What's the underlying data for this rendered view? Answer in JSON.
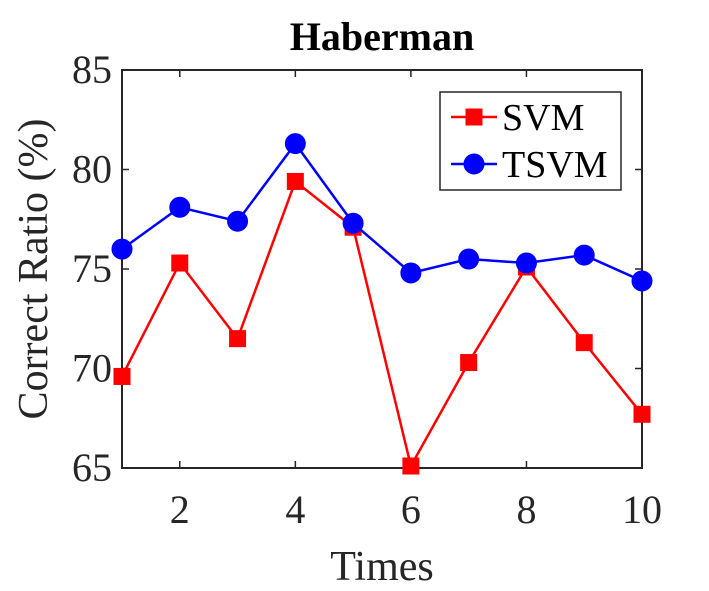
{
  "chart_data": {
    "type": "line",
    "title": "Haberman",
    "xlabel": "Times",
    "ylabel": "Correct Ratio (%)",
    "xlim": [
      1,
      10
    ],
    "ylim": [
      65,
      85
    ],
    "xticks": [
      2,
      4,
      6,
      8,
      10
    ],
    "yticks": [
      65,
      70,
      75,
      80,
      85
    ],
    "grid": false,
    "legend_position": "top-right",
    "x": [
      1,
      2,
      3,
      4,
      5,
      6,
      7,
      8,
      9,
      10
    ],
    "series": [
      {
        "name": "SVM",
        "color": "#ff0000",
        "marker": "square",
        "values": [
          69.6,
          75.3,
          71.5,
          79.4,
          77.1,
          65.1,
          70.3,
          75.1,
          71.3,
          67.7
        ]
      },
      {
        "name": "TSVM",
        "color": "#0000ff",
        "marker": "circle",
        "values": [
          76.0,
          78.1,
          77.4,
          81.3,
          77.3,
          74.8,
          75.5,
          75.3,
          75.7,
          74.4
        ]
      }
    ]
  }
}
